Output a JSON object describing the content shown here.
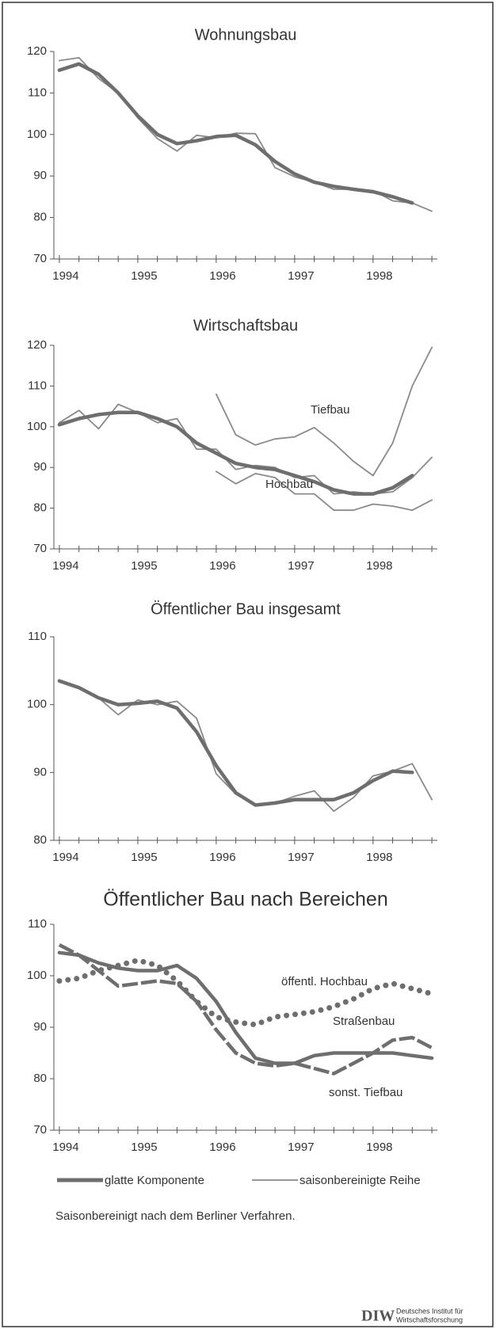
{
  "chart_data": [
    {
      "type": "line",
      "title": "Wohnungsbau",
      "x": [
        1994,
        1994.25,
        1994.5,
        1994.75,
        1995,
        1995.25,
        1995.5,
        1995.75,
        1996,
        1996.25,
        1996.5,
        1996.75,
        1997,
        1997.25,
        1997.5,
        1997.75,
        1998,
        1998.25,
        1998.5,
        1998.75
      ],
      "xlim": [
        1993.93,
        1998.82
      ],
      "xticks": [
        1994,
        1995,
        1996,
        1997,
        1998
      ],
      "ylim": [
        70,
        120
      ],
      "yticks": [
        70,
        80,
        90,
        100,
        110,
        120
      ],
      "series": [
        {
          "style": "thin",
          "color": "#8a8a8a",
          "values": [
            117.8,
            118.5,
            113.5,
            110,
            104,
            99,
            96,
            99.8,
            99.2,
            100.3,
            100.2,
            92,
            89.8,
            88.5,
            86.8,
            86.8,
            86.5,
            84,
            83.5,
            81.5
          ]
        },
        {
          "style": "thick",
          "color": "#6e6e6e",
          "values": [
            115.5,
            117,
            114.5,
            110,
            104.5,
            100,
            97.8,
            98.5,
            99.5,
            99.8,
            97.5,
            93.5,
            90.5,
            88.5,
            87.5,
            86.8,
            86.2,
            85,
            83.5,
            null
          ]
        }
      ],
      "annotations": []
    },
    {
      "type": "line",
      "title": "Wirtschaftsbau",
      "x": [
        1994,
        1994.25,
        1994.5,
        1994.75,
        1995,
        1995.25,
        1995.5,
        1995.75,
        1996,
        1996.25,
        1996.5,
        1996.75,
        1997,
        1997.25,
        1997.5,
        1997.75,
        1998,
        1998.25,
        1998.5,
        1998.75
      ],
      "xlim": [
        1993.93,
        1998.82
      ],
      "xticks": [
        1994,
        1995,
        1996,
        1997,
        1998
      ],
      "ylim": [
        70,
        120
      ],
      "yticks": [
        70,
        80,
        90,
        100,
        110,
        120
      ],
      "series": [
        {
          "style": "thin",
          "color": "#8a8a8a",
          "values": [
            101,
            104,
            99.5,
            105.5,
            103.5,
            101,
            102,
            94.5,
            94.5,
            89.5,
            90.5,
            90,
            87.5,
            88,
            83.5,
            84,
            83.5,
            84,
            87.5,
            92.5
          ]
        },
        {
          "style": "thin",
          "color": "#8a8a8a",
          "values": [
            null,
            null,
            null,
            null,
            null,
            null,
            null,
            null,
            108,
            98,
            95.5,
            97,
            97.5,
            99.8,
            96,
            91.5,
            88,
            96,
            110,
            119.5
          ]
        },
        {
          "style": "thin",
          "color": "#8a8a8a",
          "values": [
            null,
            null,
            null,
            null,
            null,
            null,
            null,
            null,
            89,
            86,
            88.5,
            87.5,
            83.5,
            83.5,
            79.5,
            79.5,
            81,
            80.5,
            79.5,
            82
          ]
        },
        {
          "style": "thick",
          "color": "#6e6e6e",
          "values": [
            100.5,
            102,
            103,
            103.5,
            103.5,
            102,
            100,
            96,
            93.5,
            91,
            90,
            89.5,
            88,
            86.5,
            84.5,
            83.5,
            83.5,
            85,
            88,
            null
          ]
        }
      ],
      "annotations": [
        {
          "text": "Tiefbau"
        },
        {
          "text": "Hochbau"
        }
      ]
    },
    {
      "type": "line",
      "title": "Öffentlicher Bau insgesamt",
      "x": [
        1994,
        1994.25,
        1994.5,
        1994.75,
        1995,
        1995.25,
        1995.5,
        1995.75,
        1996,
        1996.25,
        1996.5,
        1996.75,
        1997,
        1997.25,
        1997.5,
        1997.75,
        1998,
        1998.25,
        1998.5,
        1998.75
      ],
      "xlim": [
        1993.93,
        1998.82
      ],
      "xticks": [
        1994,
        1995,
        1996,
        1997,
        1998
      ],
      "ylim": [
        80,
        110
      ],
      "yticks": [
        80,
        90,
        100,
        110
      ],
      "series": [
        {
          "style": "thin",
          "color": "#8a8a8a",
          "values": [
            103.5,
            102.5,
            101,
            98.5,
            100.7,
            100,
            100.5,
            98,
            89.8,
            86.8,
            85.2,
            85.5,
            86.5,
            87.3,
            84.3,
            86.3,
            89.5,
            90.2,
            91.3,
            86
          ]
        },
        {
          "style": "thick",
          "color": "#6e6e6e",
          "values": [
            103.5,
            102.5,
            101,
            100,
            100.2,
            100.5,
            99.5,
            96,
            91,
            87,
            85.2,
            85.5,
            86,
            86,
            86,
            87,
            88.8,
            90.2,
            90,
            null
          ]
        }
      ],
      "annotations": []
    },
    {
      "type": "line",
      "title": "Öffentlicher Bau nach Bereichen",
      "x": [
        1994,
        1994.25,
        1994.5,
        1994.75,
        1995,
        1995.25,
        1995.5,
        1995.75,
        1996,
        1996.25,
        1996.5,
        1996.75,
        1997,
        1997.25,
        1997.5,
        1997.75,
        1998,
        1998.25,
        1998.5,
        1998.75
      ],
      "xlim": [
        1993.93,
        1998.82
      ],
      "xticks": [
        1994,
        1995,
        1996,
        1997,
        1998
      ],
      "ylim": [
        70,
        110
      ],
      "yticks": [
        70,
        80,
        90,
        100,
        110
      ],
      "series": [
        {
          "style": "thick",
          "color": "#6e6e6e",
          "values": [
            104.5,
            104,
            102.5,
            101.5,
            101,
            101,
            102,
            99.5,
            95,
            89,
            84,
            83,
            83,
            84.5,
            85,
            85,
            85,
            85,
            84.5,
            84
          ]
        },
        {
          "style": "dashed",
          "color": "#6e6e6e",
          "values": [
            106,
            104,
            101,
            98,
            98.5,
            99,
            98.5,
            95,
            89.5,
            85,
            83,
            82.5,
            83,
            82,
            81,
            83,
            85,
            87.5,
            88,
            86
          ]
        },
        {
          "style": "dotted",
          "color": "#6e6e6e",
          "values": [
            99,
            99.5,
            101,
            102,
            103,
            102,
            99,
            95,
            92,
            91,
            90.5,
            92,
            92.5,
            93,
            94,
            95.5,
            97.5,
            98.5,
            97.5,
            96.5
          ]
        }
      ],
      "annotations": [
        {
          "text": "öffentl. Hochbau"
        },
        {
          "text": "Straßenbau"
        },
        {
          "text": "sonst. Tiefbau"
        }
      ]
    }
  ],
  "legend": [
    {
      "label": "glatte Komponente",
      "style": "thick"
    },
    {
      "label": "saisonbereinigte Reihe",
      "style": "thin"
    }
  ],
  "note": "Saisonbereinigt nach dem Berliner Verfahren.",
  "logo": {
    "mark": "DIW",
    "line1": "Deutsches Institut für",
    "line2": "Wirtschaftsforschung"
  }
}
